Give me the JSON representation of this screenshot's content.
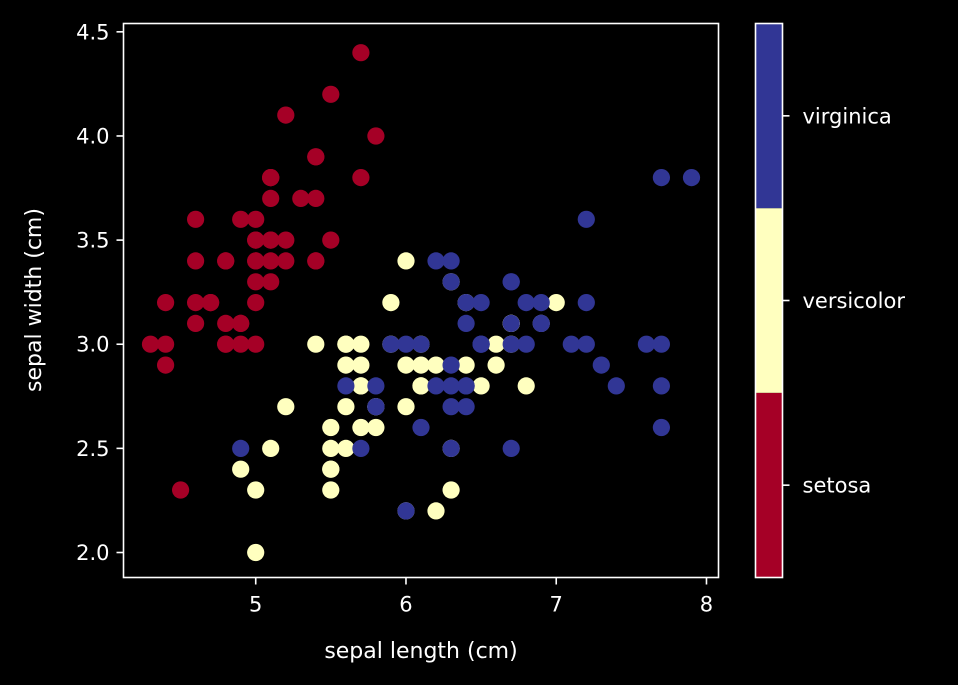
{
  "chart_data": {
    "type": "scatter",
    "title": "",
    "xlabel": "sepal length (cm)",
    "ylabel": "sepal width (cm)",
    "xlim": [
      4.12,
      8.08
    ],
    "ylim": [
      1.88,
      4.54
    ],
    "xticks": [
      5,
      6,
      7,
      8
    ],
    "xtick_labels": [
      "5",
      "6",
      "7",
      "8"
    ],
    "yticks": [
      2.0,
      2.5,
      3.0,
      3.5,
      4.0,
      4.5
    ],
    "ytick_labels": [
      "2.0",
      "2.5",
      "3.0",
      "3.5",
      "4.0",
      "4.5"
    ],
    "grid": false,
    "background": "#000000",
    "foreground": "#ffffff",
    "classes": [
      "setosa",
      "versicolor",
      "virginica"
    ],
    "colors": [
      "#a50026",
      "#ffffbf",
      "#313695"
    ],
    "colorbar": {
      "labels": [
        "setosa",
        "versicolor",
        "virginica"
      ],
      "order": "bottom-to-top"
    },
    "points": [
      [
        5.1,
        3.5,
        0
      ],
      [
        4.9,
        3.0,
        0
      ],
      [
        4.7,
        3.2,
        0
      ],
      [
        4.6,
        3.1,
        0
      ],
      [
        5.0,
        3.6,
        0
      ],
      [
        5.4,
        3.9,
        0
      ],
      [
        4.6,
        3.4,
        0
      ],
      [
        5.0,
        3.4,
        0
      ],
      [
        4.4,
        2.9,
        0
      ],
      [
        4.9,
        3.1,
        0
      ],
      [
        5.4,
        3.7,
        0
      ],
      [
        4.8,
        3.4,
        0
      ],
      [
        4.8,
        3.0,
        0
      ],
      [
        4.3,
        3.0,
        0
      ],
      [
        5.8,
        4.0,
        0
      ],
      [
        5.7,
        4.4,
        0
      ],
      [
        5.4,
        3.9,
        0
      ],
      [
        5.1,
        3.5,
        0
      ],
      [
        5.7,
        3.8,
        0
      ],
      [
        5.1,
        3.8,
        0
      ],
      [
        5.4,
        3.4,
        0
      ],
      [
        5.1,
        3.7,
        0
      ],
      [
        4.6,
        3.6,
        0
      ],
      [
        5.1,
        3.3,
        0
      ],
      [
        4.8,
        3.4,
        0
      ],
      [
        5.0,
        3.0,
        0
      ],
      [
        5.0,
        3.4,
        0
      ],
      [
        5.2,
        3.5,
        0
      ],
      [
        5.2,
        3.4,
        0
      ],
      [
        4.7,
        3.2,
        0
      ],
      [
        4.8,
        3.1,
        0
      ],
      [
        5.4,
        3.4,
        0
      ],
      [
        5.2,
        4.1,
        0
      ],
      [
        5.5,
        4.2,
        0
      ],
      [
        4.9,
        3.1,
        0
      ],
      [
        5.0,
        3.2,
        0
      ],
      [
        5.5,
        3.5,
        0
      ],
      [
        4.9,
        3.6,
        0
      ],
      [
        4.4,
        3.0,
        0
      ],
      [
        5.1,
        3.4,
        0
      ],
      [
        5.0,
        3.5,
        0
      ],
      [
        4.5,
        2.3,
        0
      ],
      [
        4.4,
        3.2,
        0
      ],
      [
        5.0,
        3.5,
        0
      ],
      [
        5.1,
        3.8,
        0
      ],
      [
        4.8,
        3.0,
        0
      ],
      [
        5.1,
        3.8,
        0
      ],
      [
        4.6,
        3.2,
        0
      ],
      [
        5.3,
        3.7,
        0
      ],
      [
        5.0,
        3.3,
        0
      ],
      [
        7.0,
        3.2,
        1
      ],
      [
        6.4,
        3.2,
        1
      ],
      [
        6.9,
        3.1,
        1
      ],
      [
        5.5,
        2.3,
        1
      ],
      [
        6.5,
        2.8,
        1
      ],
      [
        5.7,
        2.8,
        1
      ],
      [
        6.3,
        3.3,
        1
      ],
      [
        4.9,
        2.4,
        1
      ],
      [
        6.6,
        2.9,
        1
      ],
      [
        5.2,
        2.7,
        1
      ],
      [
        5.0,
        2.0,
        1
      ],
      [
        5.9,
        3.0,
        1
      ],
      [
        6.0,
        2.2,
        1
      ],
      [
        6.1,
        2.9,
        1
      ],
      [
        5.6,
        2.9,
        1
      ],
      [
        6.7,
        3.1,
        1
      ],
      [
        5.6,
        3.0,
        1
      ],
      [
        5.8,
        2.7,
        1
      ],
      [
        6.2,
        2.2,
        1
      ],
      [
        5.6,
        2.5,
        1
      ],
      [
        5.9,
        3.2,
        1
      ],
      [
        6.1,
        2.8,
        1
      ],
      [
        6.3,
        2.5,
        1
      ],
      [
        6.1,
        2.8,
        1
      ],
      [
        6.4,
        2.9,
        1
      ],
      [
        6.6,
        3.0,
        1
      ],
      [
        6.8,
        2.8,
        1
      ],
      [
        6.7,
        3.0,
        1
      ],
      [
        6.0,
        2.9,
        1
      ],
      [
        5.7,
        2.6,
        1
      ],
      [
        5.5,
        2.4,
        1
      ],
      [
        5.5,
        2.4,
        1
      ],
      [
        5.8,
        2.7,
        1
      ],
      [
        6.0,
        2.7,
        1
      ],
      [
        5.4,
        3.0,
        1
      ],
      [
        6.0,
        3.4,
        1
      ],
      [
        6.7,
        3.1,
        1
      ],
      [
        6.3,
        2.3,
        1
      ],
      [
        5.6,
        3.0,
        1
      ],
      [
        5.5,
        2.5,
        1
      ],
      [
        5.5,
        2.6,
        1
      ],
      [
        6.1,
        3.0,
        1
      ],
      [
        5.8,
        2.6,
        1
      ],
      [
        5.0,
        2.3,
        1
      ],
      [
        5.6,
        2.7,
        1
      ],
      [
        5.7,
        3.0,
        1
      ],
      [
        5.7,
        2.9,
        1
      ],
      [
        6.2,
        2.9,
        1
      ],
      [
        5.1,
        2.5,
        1
      ],
      [
        5.7,
        2.8,
        1
      ],
      [
        6.3,
        3.3,
        2
      ],
      [
        5.8,
        2.7,
        2
      ],
      [
        7.1,
        3.0,
        2
      ],
      [
        6.3,
        2.9,
        2
      ],
      [
        6.5,
        3.0,
        2
      ],
      [
        7.6,
        3.0,
        2
      ],
      [
        4.9,
        2.5,
        2
      ],
      [
        7.3,
        2.9,
        2
      ],
      [
        6.7,
        2.5,
        2
      ],
      [
        7.2,
        3.6,
        2
      ],
      [
        6.5,
        3.2,
        2
      ],
      [
        6.4,
        2.7,
        2
      ],
      [
        6.8,
        3.0,
        2
      ],
      [
        5.7,
        2.5,
        2
      ],
      [
        5.8,
        2.8,
        2
      ],
      [
        6.4,
        3.2,
        2
      ],
      [
        6.5,
        3.0,
        2
      ],
      [
        7.7,
        3.8,
        2
      ],
      [
        7.7,
        2.6,
        2
      ],
      [
        6.0,
        2.2,
        2
      ],
      [
        6.9,
        3.2,
        2
      ],
      [
        5.6,
        2.8,
        2
      ],
      [
        7.7,
        2.8,
        2
      ],
      [
        6.3,
        2.7,
        2
      ],
      [
        6.7,
        3.3,
        2
      ],
      [
        7.2,
        3.2,
        2
      ],
      [
        6.2,
        2.8,
        2
      ],
      [
        6.1,
        3.0,
        2
      ],
      [
        6.4,
        2.8,
        2
      ],
      [
        7.2,
        3.0,
        2
      ],
      [
        7.4,
        2.8,
        2
      ],
      [
        7.9,
        3.8,
        2
      ],
      [
        6.4,
        2.8,
        2
      ],
      [
        6.3,
        2.8,
        2
      ],
      [
        6.1,
        2.6,
        2
      ],
      [
        7.7,
        3.0,
        2
      ],
      [
        6.3,
        3.4,
        2
      ],
      [
        6.4,
        3.1,
        2
      ],
      [
        6.0,
        3.0,
        2
      ],
      [
        6.9,
        3.1,
        2
      ],
      [
        6.7,
        3.1,
        2
      ],
      [
        6.9,
        3.1,
        2
      ],
      [
        5.8,
        2.7,
        2
      ],
      [
        6.8,
        3.2,
        2
      ],
      [
        6.7,
        3.3,
        2
      ],
      [
        6.7,
        3.0,
        2
      ],
      [
        6.3,
        2.5,
        2
      ],
      [
        6.5,
        3.0,
        2
      ],
      [
        6.2,
        3.4,
        2
      ],
      [
        5.9,
        3.0,
        2
      ]
    ]
  }
}
